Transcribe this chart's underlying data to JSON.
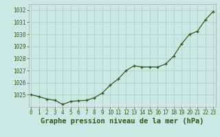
{
  "hours": [
    0,
    1,
    2,
    3,
    4,
    5,
    6,
    7,
    8,
    9,
    10,
    11,
    12,
    13,
    14,
    15,
    16,
    17,
    18,
    19,
    20,
    21,
    22,
    23
  ],
  "pressure": [
    1025.0,
    1024.85,
    1024.65,
    1024.55,
    1024.2,
    1024.45,
    1024.5,
    1024.55,
    1024.75,
    1025.15,
    1025.8,
    1026.3,
    1027.0,
    1027.4,
    1027.3,
    1027.3,
    1027.3,
    1027.55,
    1028.2,
    1029.2,
    1030.0,
    1030.25,
    1031.2,
    1031.9
  ],
  "line_color": "#2d5a1b",
  "marker_color": "#2d5a1b",
  "bg_color": "#cce8e4",
  "plot_bg": "#cce8e4",
  "grid_color": "#aacccc",
  "xlabel": "Graphe pression niveau de la mer (hPa)",
  "ylim": [
    1024.0,
    1032.5
  ],
  "yticks": [
    1025,
    1026,
    1027,
    1028,
    1029,
    1030,
    1031,
    1032
  ],
  "xticks": [
    0,
    1,
    2,
    3,
    4,
    5,
    6,
    7,
    8,
    9,
    10,
    11,
    12,
    13,
    14,
    15,
    16,
    17,
    18,
    19,
    20,
    21,
    22,
    23
  ],
  "tick_fontsize": 5.5,
  "xlabel_fontsize": 7.5,
  "tick_color": "#2d5a1b"
}
